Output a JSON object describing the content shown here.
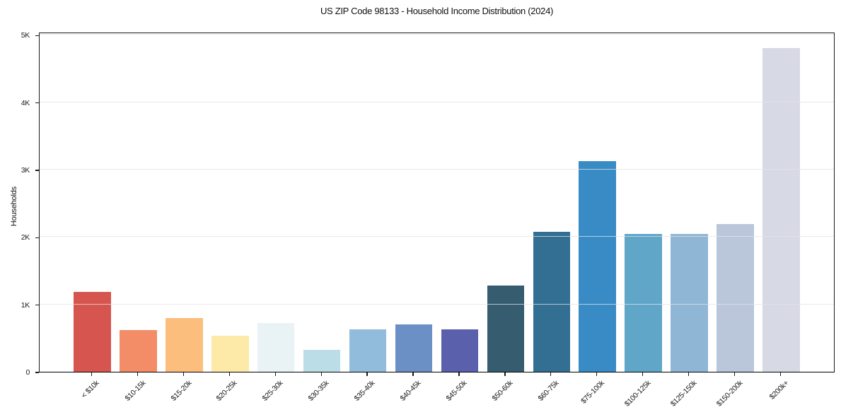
{
  "chart_data": {
    "type": "bar",
    "title": "US ZIP Code 98133 - Household Income Distribution (2024)",
    "xlabel": "",
    "ylabel": "Households",
    "categories": [
      "< $10k",
      "$10-15k",
      "$15-20k",
      "$20-25k",
      "$25-30k",
      "$30-35k",
      "$35-40k",
      "$40-45k",
      "$45-50k",
      "$50-60k",
      "$60-75k",
      "$75-100k",
      "$100-125k",
      "$125-150k",
      "$150-200k",
      "$200k+"
    ],
    "values": [
      1190,
      615,
      795,
      535,
      725,
      325,
      630,
      700,
      630,
      1275,
      2075,
      3130,
      2045,
      2045,
      2195,
      4800
    ],
    "bar_colors": [
      "#d6564f",
      "#f28d68",
      "#fcbe7d",
      "#fdeaa8",
      "#e9f3f5",
      "#bbdde7",
      "#92bcdb",
      "#6b90c6",
      "#5b60ac",
      "#365c70",
      "#336f92",
      "#388bc4",
      "#5fa6c8",
      "#8fb6d4",
      "#bac7da",
      "#d7d9e5"
    ],
    "ylim": [
      0,
      5045
    ],
    "ytick_values": [
      0,
      1000,
      2000,
      3000,
      4000,
      5000
    ],
    "ytick_labels": [
      "0",
      "1K",
      "2K",
      "3K",
      "4K",
      "5K"
    ],
    "grid": "horizontal-light",
    "legend": "none",
    "background_color": "#ffffff",
    "spine_color": "#1a1a1a"
  }
}
